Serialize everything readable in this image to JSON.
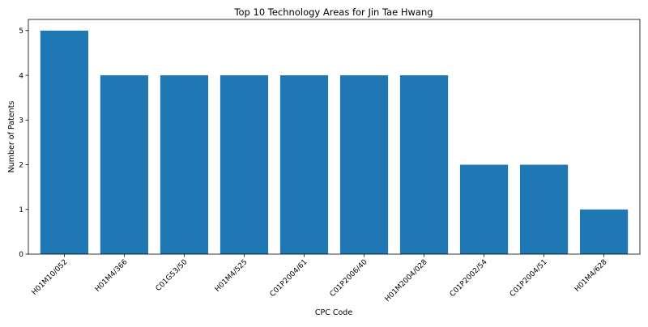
{
  "chart_data": {
    "type": "bar",
    "title": "Top 10 Technology Areas for Jin Tae Hwang",
    "xlabel": "CPC Code",
    "ylabel": "Number of Patents",
    "categories": [
      "H01M10/052",
      "H01M4/366",
      "C01G53/50",
      "H01M4/525",
      "C01P2004/61",
      "C01P2006/40",
      "H01M2004/028",
      "C01P2002/54",
      "C01P2004/51",
      "H01M4/628"
    ],
    "values": [
      5,
      4,
      4,
      4,
      4,
      4,
      4,
      2,
      2,
      1
    ],
    "ylim": [
      0,
      5.25
    ],
    "yticks": [
      0,
      1,
      2,
      3,
      4,
      5
    ],
    "grid": false,
    "legend": "none",
    "bar_color": "#1f77b4"
  }
}
